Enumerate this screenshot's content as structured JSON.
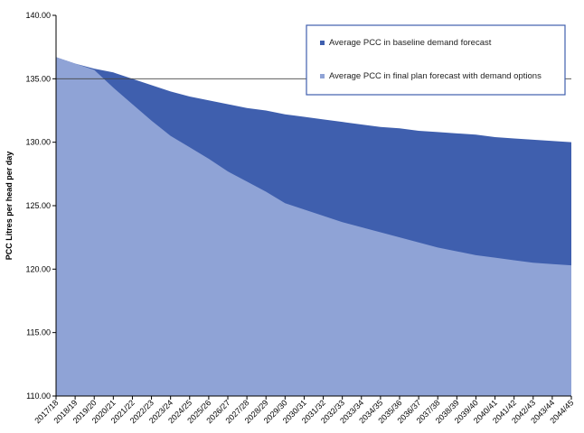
{
  "chart_data": {
    "type": "area",
    "title": "",
    "xlabel": "",
    "ylabel": "PCC Litres per head per day",
    "ylim": [
      110,
      140
    ],
    "yticks": [
      "110.00",
      "115.00",
      "120.00",
      "125.00",
      "130.00",
      "135.00",
      "140.00"
    ],
    "categories": [
      "2017/18",
      "2018/19",
      "2019/20",
      "2020/21",
      "2021/22",
      "2022/23",
      "2023/24",
      "2024/25",
      "2025/26",
      "2026/27",
      "2027/28",
      "2028/29",
      "2029/30",
      "2030/31",
      "2031/32",
      "2032/33",
      "2033/34",
      "2034/35",
      "2035/36",
      "2036/37",
      "2037/38",
      "2038/39",
      "2039/40",
      "2040/41",
      "2041/42",
      "2042/43",
      "2043/44",
      "2044/45"
    ],
    "series": [
      {
        "name": "Average PCC in baseline demand forecast",
        "color": "#3f5fae",
        "values": [
          136.7,
          136.2,
          135.8,
          135.5,
          135.0,
          134.5,
          134.0,
          133.6,
          133.3,
          133.0,
          132.7,
          132.5,
          132.2,
          132.0,
          131.8,
          131.6,
          131.4,
          131.2,
          131.1,
          130.9,
          130.8,
          130.7,
          130.6,
          130.4,
          130.3,
          130.2,
          130.1,
          130.0
        ]
      },
      {
        "name": "Average PCC in final plan forecast with demand options",
        "color": "#8fa3d6",
        "values": [
          136.7,
          136.2,
          135.7,
          134.3,
          133.0,
          131.7,
          130.5,
          129.6,
          128.7,
          127.7,
          126.9,
          126.1,
          125.2,
          124.7,
          124.2,
          123.7,
          123.3,
          122.9,
          122.5,
          122.1,
          121.7,
          121.4,
          121.1,
          120.9,
          120.7,
          120.5,
          120.4,
          120.3
        ]
      }
    ],
    "legend_position": "top-right",
    "grid": false
  }
}
